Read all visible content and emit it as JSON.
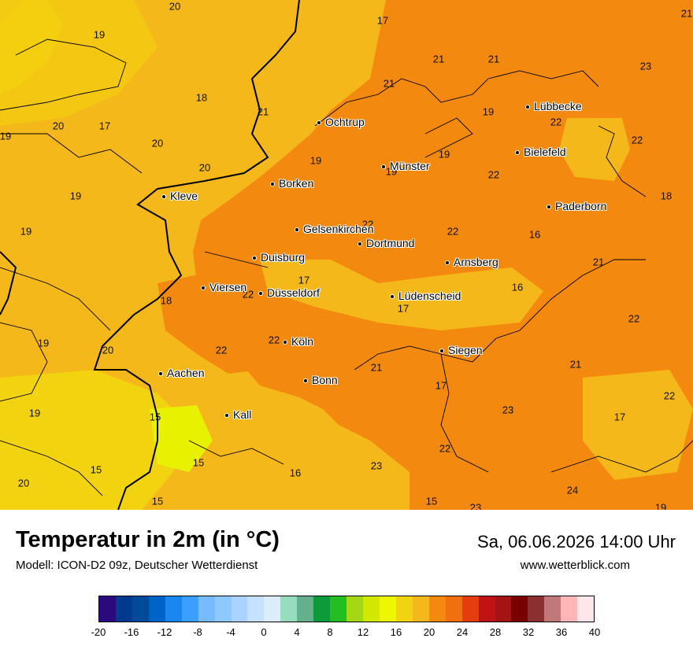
{
  "header": {
    "title": "Temperatur in 2m (in °C)",
    "model": "Modell: ICON-D2 09z, Deutscher Wetterdienst",
    "datetime": "Sa, 06.06.2026 14:00 Uhr",
    "website": "www.wetterblick.com"
  },
  "colors": {
    "base": "#f5b81a",
    "warm": "#f4890f",
    "light": "#f2d30f",
    "green_yellow": "#e8f200",
    "border": "#000000"
  },
  "cities": [
    {
      "name": "Lübbecke"
    },
    {
      "name": "Ochtrup"
    },
    {
      "name": "Bielefeld"
    },
    {
      "name": "Münster"
    },
    {
      "name": "Borken"
    },
    {
      "name": "Kleve"
    },
    {
      "name": "Paderborn"
    },
    {
      "name": "Gelsenkirchen"
    },
    {
      "name": "Dortmund"
    },
    {
      "name": "Duisburg"
    },
    {
      "name": "Arnsberg"
    },
    {
      "name": "Viersen"
    },
    {
      "name": "Düsseldorf"
    },
    {
      "name": "Lüdenscheid"
    },
    {
      "name": "Köln"
    },
    {
      "name": "Siegen"
    },
    {
      "name": "Aachen"
    },
    {
      "name": "Bonn"
    },
    {
      "name": "Kall"
    }
  ],
  "values": [
    "20",
    "21",
    "19",
    "17",
    "21",
    "21",
    "23",
    "18",
    "21",
    "19",
    "22",
    "20",
    "17",
    "19",
    "22",
    "20",
    "19",
    "20",
    "19",
    "19",
    "22",
    "18",
    "19",
    "22",
    "16",
    "19",
    "22",
    "21",
    "18",
    "17",
    "16",
    "22",
    "19",
    "20",
    "22",
    "21",
    "22",
    "21",
    "19",
    "17",
    "23",
    "22",
    "15",
    "17",
    "15",
    "16",
    "23",
    "20",
    "15",
    "15",
    "24",
    "23",
    "19"
  ],
  "legend": {
    "colors": [
      "#2b0a7e",
      "#003a8c",
      "#004a9a",
      "#0063c8",
      "#1a86f0",
      "#3aa0ff",
      "#74bcff",
      "#8dc8ff",
      "#aad4ff",
      "#c5e1ff",
      "#dcecfa",
      "#96dcbe",
      "#62b08c",
      "#0d9b3a",
      "#22be22",
      "#a2d814",
      "#d2e800",
      "#eef600",
      "#f2d30f",
      "#f5b81a",
      "#f4890f",
      "#f0700f",
      "#e63d0f",
      "#c01414",
      "#a41414",
      "#7a0000",
      "#8b3030",
      "#c07878",
      "#ffb6b6",
      "#ffe6ea"
    ],
    "ticks": [
      "-20",
      "-16",
      "-12",
      "-8",
      "-4",
      "0",
      "4",
      "8",
      "12",
      "16",
      "20",
      "24",
      "28",
      "32",
      "36",
      "40"
    ]
  }
}
